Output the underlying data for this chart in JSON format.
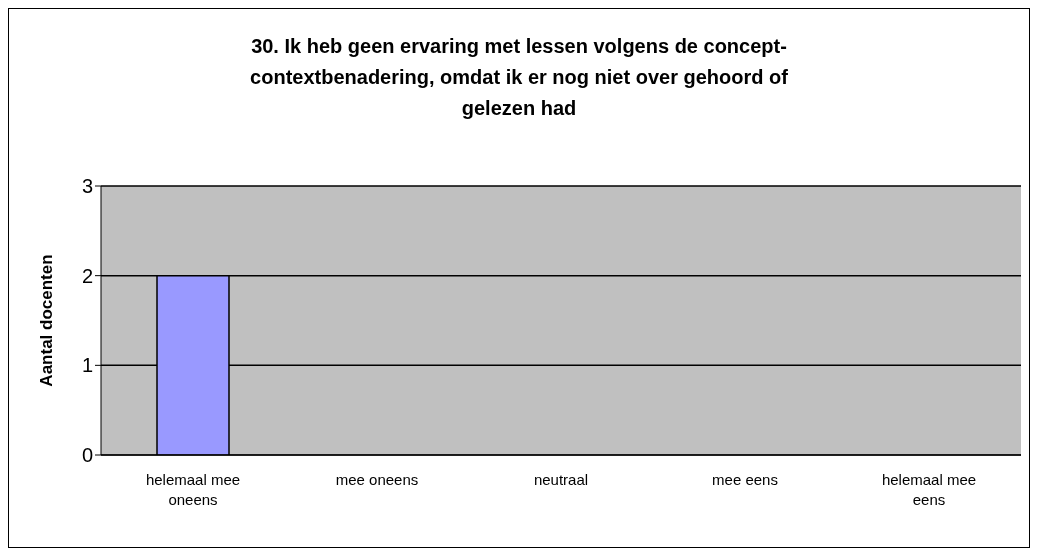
{
  "chart_data": {
    "type": "bar",
    "title": "30. Ik heb geen ervaring met lessen volgens de concept-contextbenadering, omdat ik er nog niet over gehoord of gelezen had",
    "ylabel": "Aantal docenten",
    "categories": [
      "helemaal mee oneens",
      "mee oneens",
      "neutraal",
      "mee eens",
      "helemaal mee eens"
    ],
    "values": [
      2,
      0,
      0,
      0,
      0
    ],
    "color": "#9999ff",
    "ylim": [
      0,
      3
    ],
    "yticks": [
      0,
      1,
      2,
      3
    ],
    "grid": "y"
  }
}
